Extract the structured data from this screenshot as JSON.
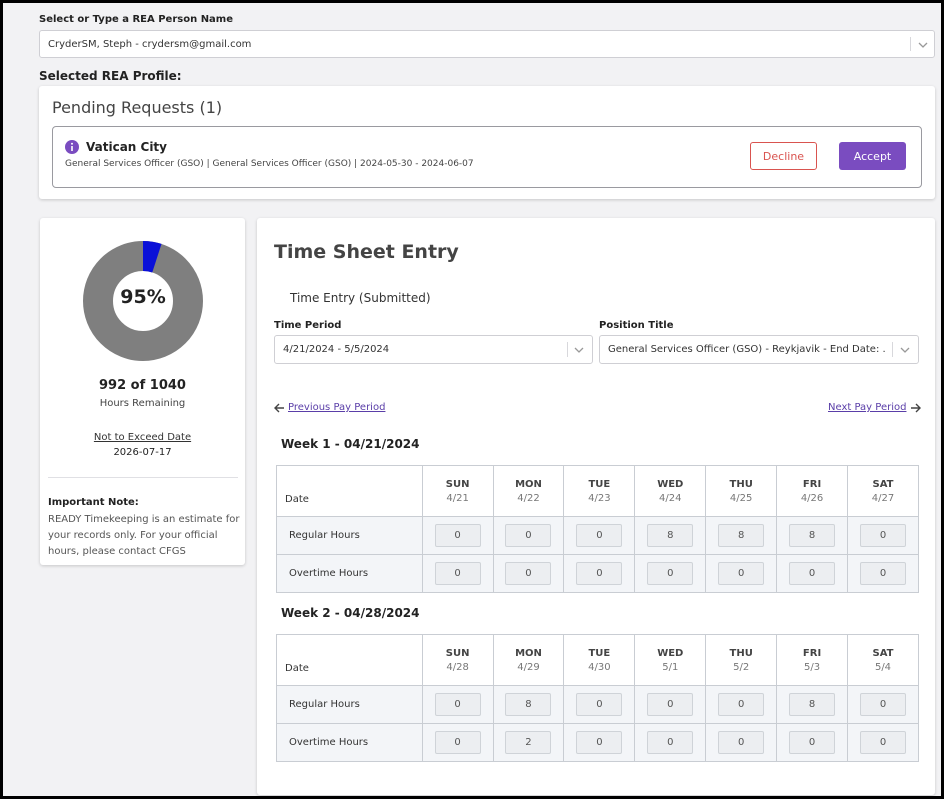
{
  "person": {
    "label": "Select or Type a REA Person Name",
    "value": "CryderSM, Steph - crydersm@gmail.com"
  },
  "profile_label": "Selected REA Profile:",
  "pending": {
    "title": "Pending Requests (1)",
    "item": {
      "icon": "info-icon",
      "location": "Vatican City",
      "details": "General Services Officer (GSO) | General Services Officer (GSO) | 2024-05-30 - 2024-06-07",
      "decline_label": "Decline",
      "accept_label": "Accept"
    }
  },
  "summary": {
    "percent_label": "95%",
    "percent_value": 0.95,
    "hours": "992 of 1040",
    "hours_caption": "Hours Remaining",
    "nte_label": "Not to Exceed Date",
    "nte_value": "2026-07-17",
    "note_title": "Important Note:",
    "note_text": "READY Timekeeping is an estimate for your records only. For your official hours, please contact CFGS",
    "colors": {
      "used": "#0a10d8",
      "remaining": "#7f7f7f"
    }
  },
  "timesheet": {
    "title": "Time Sheet Entry",
    "status": "Time Entry (Submitted)",
    "period_label": "Time Period",
    "period_value": "4/21/2024 - 5/5/2024",
    "position_label": "Position Title",
    "position_value": "General Services Officer (GSO) - Reykjavik - End Date: ...",
    "prev_label": "Previous Pay Period",
    "next_label": "Next Pay Period",
    "date_header": "Date",
    "regular_label": "Regular Hours",
    "overtime_label": "Overtime Hours",
    "weeks": [
      {
        "title": "Week 1 - 04/21/2024",
        "days": [
          {
            "name": "SUN",
            "date": "4/21"
          },
          {
            "name": "MON",
            "date": "4/22"
          },
          {
            "name": "TUE",
            "date": "4/23"
          },
          {
            "name": "WED",
            "date": "4/24"
          },
          {
            "name": "THU",
            "date": "4/25"
          },
          {
            "name": "FRI",
            "date": "4/26"
          },
          {
            "name": "SAT",
            "date": "4/27"
          }
        ],
        "regular": [
          "0",
          "0",
          "0",
          "8",
          "8",
          "8",
          "0"
        ],
        "overtime": [
          "0",
          "0",
          "0",
          "0",
          "0",
          "0",
          "0"
        ]
      },
      {
        "title": "Week 2 - 04/28/2024",
        "days": [
          {
            "name": "SUN",
            "date": "4/28"
          },
          {
            "name": "MON",
            "date": "4/29"
          },
          {
            "name": "TUE",
            "date": "4/30"
          },
          {
            "name": "WED",
            "date": "5/1"
          },
          {
            "name": "THU",
            "date": "5/2"
          },
          {
            "name": "FRI",
            "date": "5/3"
          },
          {
            "name": "SAT",
            "date": "5/4"
          }
        ],
        "regular": [
          "0",
          "8",
          "0",
          "0",
          "0",
          "8",
          "0"
        ],
        "overtime": [
          "0",
          "2",
          "0",
          "0",
          "0",
          "0",
          "0"
        ]
      }
    ]
  }
}
